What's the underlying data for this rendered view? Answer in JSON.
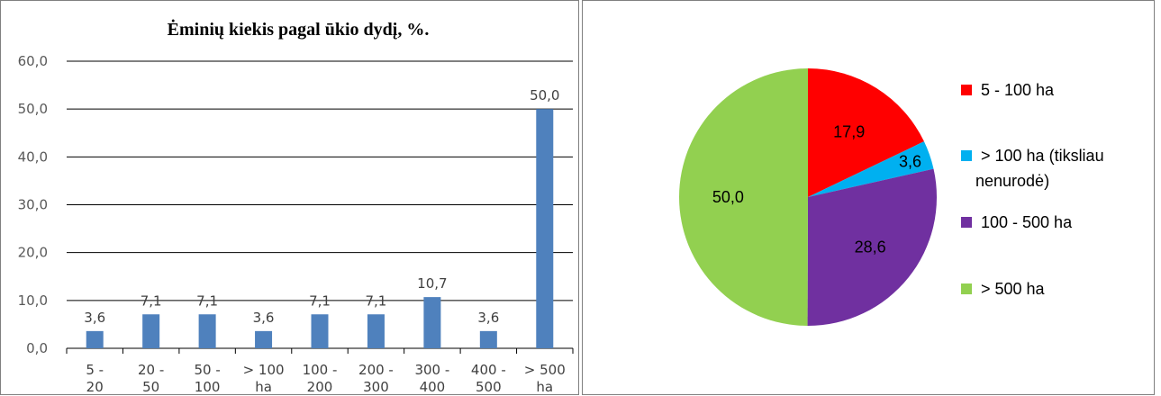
{
  "charts": {
    "bar": {
      "title": "Ėminių kiekis pagal ūkio dydį, %.",
      "y_ticks": [
        "0,0",
        "10,0",
        "20,0",
        "30,0",
        "40,0",
        "50,0",
        "60,0"
      ],
      "categories": [
        [
          "5  -",
          "20"
        ],
        [
          "20 -",
          "50"
        ],
        [
          "50 -",
          "100"
        ],
        [
          "> 100",
          "ha"
        ],
        [
          "100 -",
          "200"
        ],
        [
          "200 -",
          "300"
        ],
        [
          "300 -",
          "400"
        ],
        [
          "400 -",
          "500"
        ],
        [
          "> 500",
          "ha"
        ]
      ],
      "value_labels": [
        "3,6",
        "7,1",
        "7,1",
        "3,6",
        "7,1",
        "7,1",
        "10,7",
        "3,6",
        "50,0"
      ],
      "bar_color": "#4f81bd"
    },
    "pie": {
      "slice_labels": [
        "17,9",
        "3,6",
        "28,6",
        "50,0"
      ],
      "legend": [
        {
          "label": "5 -   100 ha",
          "color": "#ff0000"
        },
        {
          "label": "> 100 ha (tiksliau",
          "label2": "nenurodė)",
          "color": "#00b0f0"
        },
        {
          "label": "100 - 500 ha",
          "color": "#7030a0"
        },
        {
          "label": "> 500 ha",
          "color": "#92d050"
        }
      ]
    }
  },
  "chart_data": [
    {
      "type": "bar",
      "title": "Ėminių kiekis pagal ūkio dydį, %.",
      "categories": [
        "5 - 20",
        "20 - 50",
        "50 - 100",
        "> 100 ha",
        "100 - 200",
        "200 - 300",
        "300 - 400",
        "400 - 500",
        "> 500 ha"
      ],
      "values": [
        3.6,
        7.1,
        7.1,
        3.6,
        7.1,
        7.1,
        10.7,
        3.6,
        50.0
      ],
      "ylim": [
        0,
        60
      ],
      "yticks": [
        0,
        10,
        20,
        30,
        40,
        50,
        60
      ],
      "grid": true,
      "xlabel": "",
      "ylabel": ""
    },
    {
      "type": "pie",
      "categories": [
        "5 -   100 ha",
        "> 100 ha (tiksliau nenurodė)",
        "100 - 500 ha",
        "> 500 ha"
      ],
      "values": [
        17.9,
        3.6,
        28.6,
        50.0
      ],
      "colors": [
        "#ff0000",
        "#00b0f0",
        "#7030a0",
        "#92d050"
      ],
      "legend": "right"
    }
  ]
}
